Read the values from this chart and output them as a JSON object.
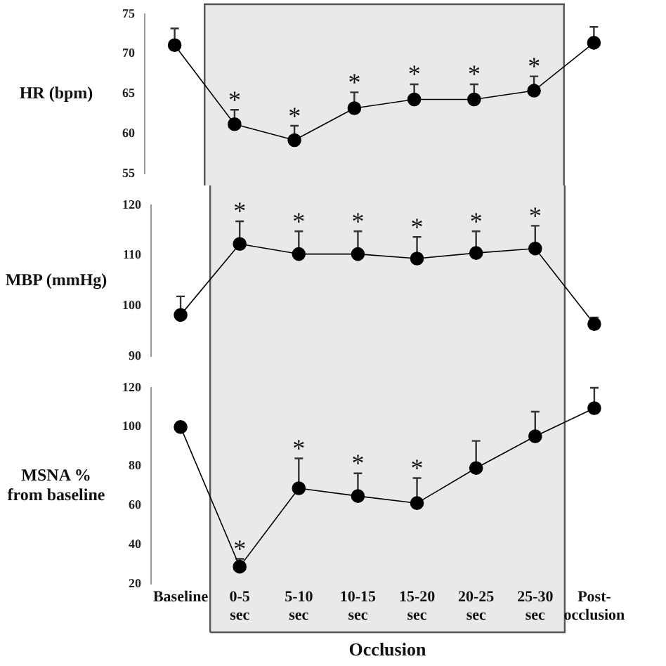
{
  "chart_data": [
    {
      "type": "line",
      "ylabel": "HR (bpm)",
      "categories": [
        "Baseline",
        "0-5 sec",
        "5-10 sec",
        "10-15 sec",
        "15-20 sec",
        "20-25 sec",
        "25-30 sec",
        "Post-occlusion"
      ],
      "values": [
        71.1,
        61.2,
        59.2,
        63.2,
        64.3,
        64.3,
        65.4,
        71.4
      ],
      "errors": [
        [
          71.1,
          73.2
        ],
        [
          61.2,
          63.0
        ],
        [
          59.2,
          61.0
        ],
        [
          63.2,
          65.2
        ],
        [
          64.3,
          66.2
        ],
        [
          64.3,
          66.2
        ],
        [
          65.4,
          67.2
        ],
        [
          71.4,
          73.4
        ]
      ],
      "color": "#000000",
      "marker": "circle",
      "ylim": [
        55,
        75
      ],
      "yticks": [
        55,
        60,
        65,
        70,
        75
      ],
      "tick_labels": "y",
      "bands": [
        {
          "axis": "x",
          "from": "0-5 sec",
          "to": "25-30 sec",
          "color": "#e9e9e9"
        }
      ],
      "annotations": [
        {
          "text": "*",
          "x": "0-5 sec",
          "y": 63.0
        },
        {
          "text": "*",
          "x": "5-10 sec",
          "y": 61.0
        },
        {
          "text": "*",
          "x": "10-15 sec",
          "y": 65.2
        },
        {
          "text": "*",
          "x": "15-20 sec",
          "y": 66.2
        },
        {
          "text": "*",
          "x": "20-25 sec",
          "y": 66.2
        },
        {
          "text": "*",
          "x": "25-30 sec",
          "y": 67.2
        }
      ]
    },
    {
      "type": "line",
      "ylabel": "MBP (mmHg)",
      "categories": [
        "Baseline",
        "0-5 sec",
        "5-10 sec",
        "10-15 sec",
        "15-20 sec",
        "20-25 sec",
        "25-30 sec",
        "Post-occlusion"
      ],
      "values": [
        98.2,
        112.3,
        110.3,
        110.3,
        109.4,
        110.5,
        111.4,
        96.4
      ],
      "errors": [
        [
          98.2,
          101.9
        ],
        [
          112.3,
          116.8
        ],
        [
          110.3,
          114.8
        ],
        [
          110.3,
          114.8
        ],
        [
          109.4,
          113.7
        ],
        [
          110.5,
          114.8
        ],
        [
          111.4,
          115.9
        ],
        [
          96.4,
          97.7
        ]
      ],
      "color": "#000000",
      "marker": "circle",
      "ylim": [
        90,
        120
      ],
      "yticks": [
        90,
        100,
        110,
        120
      ],
      "tick_labels": "y",
      "bands": [
        {
          "axis": "x",
          "from": "0-5 sec",
          "to": "25-30 sec",
          "color": "#e9e9e9"
        }
      ],
      "annotations": [
        {
          "text": "*",
          "x": "0-5 sec",
          "y": 116.8
        },
        {
          "text": "*",
          "x": "5-10 sec",
          "y": 114.8
        },
        {
          "text": "*",
          "x": "10-15 sec",
          "y": 114.8
        },
        {
          "text": "*",
          "x": "15-20 sec",
          "y": 113.7
        },
        {
          "text": "*",
          "x": "20-25 sec",
          "y": 114.8
        },
        {
          "text": "*",
          "x": "25-30 sec",
          "y": 115.9
        }
      ]
    },
    {
      "type": "line",
      "ylabel": "MSNA % from baseline",
      "categories": [
        "Baseline",
        "0-5 sec",
        "5-10 sec",
        "10-15 sec",
        "15-20 sec",
        "20-25 sec",
        "25-30 sec",
        "Post-occlusion"
      ],
      "values": [
        100,
        28.8,
        68.8,
        64.8,
        61.2,
        79.1,
        95.3,
        109.6
      ],
      "errors": [
        null,
        [
          28.8,
          32.8
        ],
        [
          68.8,
          84
        ],
        [
          64.8,
          76.4
        ],
        [
          61.2,
          74
        ],
        [
          79.1,
          92.9
        ],
        [
          95.3,
          107.8
        ],
        [
          109.6,
          120
        ]
      ],
      "color": "#000000",
      "marker": "circle",
      "ylim": [
        20,
        120
      ],
      "yticks": [
        20,
        40,
        60,
        80,
        100,
        120
      ],
      "bands": [
        {
          "axis": "x",
          "from": "0-5 sec",
          "to": "25-30 sec",
          "label": "Occlusion",
          "color": "#e9e9e9"
        }
      ],
      "annotations": [
        {
          "text": "*",
          "x": "0-5 sec",
          "y": 32.8
        },
        {
          "text": "*",
          "x": "5-10 sec",
          "y": 84
        },
        {
          "text": "*",
          "x": "10-15 sec",
          "y": 76.4
        },
        {
          "text": "*",
          "x": "15-20 sec",
          "y": 74
        }
      ]
    }
  ]
}
